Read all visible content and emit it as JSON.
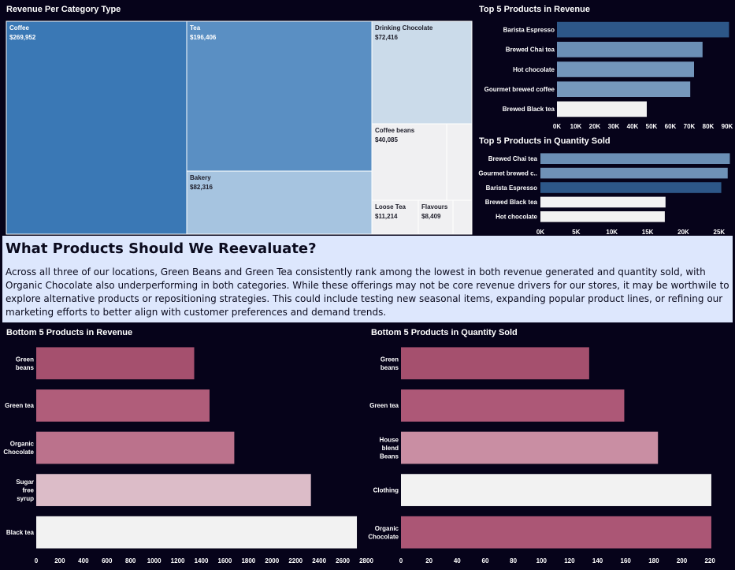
{
  "colors": {
    "background": "#06031a",
    "textbox_bg": "#dde7fd"
  },
  "chart_data": [
    {
      "id": "treemap",
      "type": "treemap",
      "title": "Revenue Per Category Type",
      "items": [
        {
          "name": "Coffee",
          "label": "$269,952",
          "value": 269952,
          "color": "#3a78b5"
        },
        {
          "name": "Tea",
          "label": "$196,406",
          "value": 196406,
          "color": "#5a8fc3"
        },
        {
          "name": "Bakery",
          "label": "$82,316",
          "value": 82316,
          "color": "#a6c4e0"
        },
        {
          "name": "Drinking Chocolate",
          "label": "$72,416",
          "value": 72416,
          "color": "#cbdbea"
        },
        {
          "name": "Coffee beans",
          "label": "$40,085",
          "value": 40085,
          "color": "#f0f0f2"
        },
        {
          "name": "Loose Tea",
          "label": "$11,214",
          "value": 11214,
          "color": "#f0f0f2"
        },
        {
          "name": "Flavours",
          "label": "$8,409",
          "value": 8409,
          "color": "#f0f0f2"
        },
        {
          "name": "",
          "label": "",
          "value": 5000,
          "color": "#f0f0f2"
        },
        {
          "name": "",
          "label": "",
          "value": 2500,
          "color": "#f0f0f2"
        }
      ]
    },
    {
      "id": "top_revenue",
      "type": "bar",
      "orientation": "horizontal",
      "title": "Top 5 Products in Revenue",
      "categories": [
        "Barista Espresso",
        "Brewed Chai tea",
        "Hot chocolate",
        "Gourmet brewed coffee",
        "Brewed Black tea"
      ],
      "values": [
        91000,
        77000,
        72500,
        70500,
        47500
      ],
      "colors": [
        "#2d5788",
        "#6b8fb5",
        "#7396bb",
        "#7698bc",
        "#f2f2f2"
      ],
      "xlim": [
        0,
        95000
      ],
      "ticks": [
        0,
        10000,
        20000,
        30000,
        40000,
        50000,
        60000,
        70000,
        80000,
        90000
      ],
      "tick_labels": [
        "0K",
        "10K",
        "20K",
        "30K",
        "40K",
        "50K",
        "60K",
        "70K",
        "80K",
        "90K"
      ]
    },
    {
      "id": "top_quantity",
      "type": "bar",
      "orientation": "horizontal",
      "title": "Top 5 Products in Quantity Sold",
      "categories": [
        "Brewed Chai tea",
        "Gourmet brewed c..",
        "Barista Espresso",
        "Brewed Black tea",
        "Hot chocolate"
      ],
      "values": [
        26500,
        26200,
        25300,
        17500,
        17400
      ],
      "colors": [
        "#6b8fb5",
        "#6f92b7",
        "#2d5788",
        "#f2f2f2",
        "#f2f2f2"
      ],
      "xlim": [
        0,
        27000
      ],
      "ticks": [
        0,
        5000,
        10000,
        15000,
        20000,
        25000
      ],
      "tick_labels": [
        "0K",
        "5K",
        "10K",
        "15K",
        "20K",
        "25K"
      ]
    },
    {
      "id": "bottom_revenue",
      "type": "bar",
      "orientation": "horizontal",
      "title": "Bottom 5 Products in Revenue",
      "categories": [
        [
          "Green",
          "beans"
        ],
        [
          "Green tea"
        ],
        [
          "Organic",
          "Chocolate"
        ],
        [
          "Sugar",
          "free",
          "syrup"
        ],
        [
          "Black tea"
        ]
      ],
      "values": [
        1340,
        1470,
        1680,
        2330,
        2720
      ],
      "colors": [
        "#a5506e",
        "#b05d7a",
        "#bb728c",
        "#dcbcc8",
        "#f2f2f2"
      ],
      "xlim": [
        0,
        2800
      ],
      "ticks": [
        0,
        200,
        400,
        600,
        800,
        1000,
        1200,
        1400,
        1600,
        1800,
        2000,
        2200,
        2400,
        2600,
        2800
      ],
      "tick_labels": [
        "0",
        "200",
        "400",
        "600",
        "800",
        "1000",
        "1200",
        "1400",
        "1600",
        "1800",
        "2000",
        "2200",
        "2400",
        "2600",
        "2800"
      ]
    },
    {
      "id": "bottom_quantity",
      "type": "bar",
      "orientation": "horizontal",
      "title": "Bottom 5 Products in Quantity Sold",
      "categories": [
        [
          "Green",
          "beans"
        ],
        [
          "Green tea"
        ],
        [
          "House",
          "blend",
          "Beans"
        ],
        [
          "Clothing"
        ],
        [
          "Organic",
          "Chocolate"
        ]
      ],
      "values": [
        134,
        159,
        183,
        221,
        221
      ],
      "colors": [
        "#a5506e",
        "#ad5877",
        "#c98ea3",
        "#f2f2f2",
        "#ab5675"
      ],
      "xlim": [
        0,
        230
      ],
      "ticks": [
        0,
        20,
        40,
        60,
        80,
        100,
        120,
        140,
        160,
        180,
        200,
        220
      ],
      "tick_labels": [
        "0",
        "20",
        "40",
        "60",
        "80",
        "100",
        "120",
        "140",
        "160",
        "180",
        "200",
        "220"
      ]
    }
  ],
  "textbox": {
    "heading": "What Products Should We Reevaluate?",
    "body": "Across all three of our locations, Green Beans and Green Tea consistently rank among the lowest in both revenue generated and quantity sold, with Organic Chocolate also underperforming in both categories. While these offerings may not be core revenue drivers for our stores, it may be worthwile to explore alternative products or repositioning strategies. This could include testing new seasonal items, expanding popular product lines, or refining our marketing efforts to better align with customer preferences and demand trends."
  }
}
